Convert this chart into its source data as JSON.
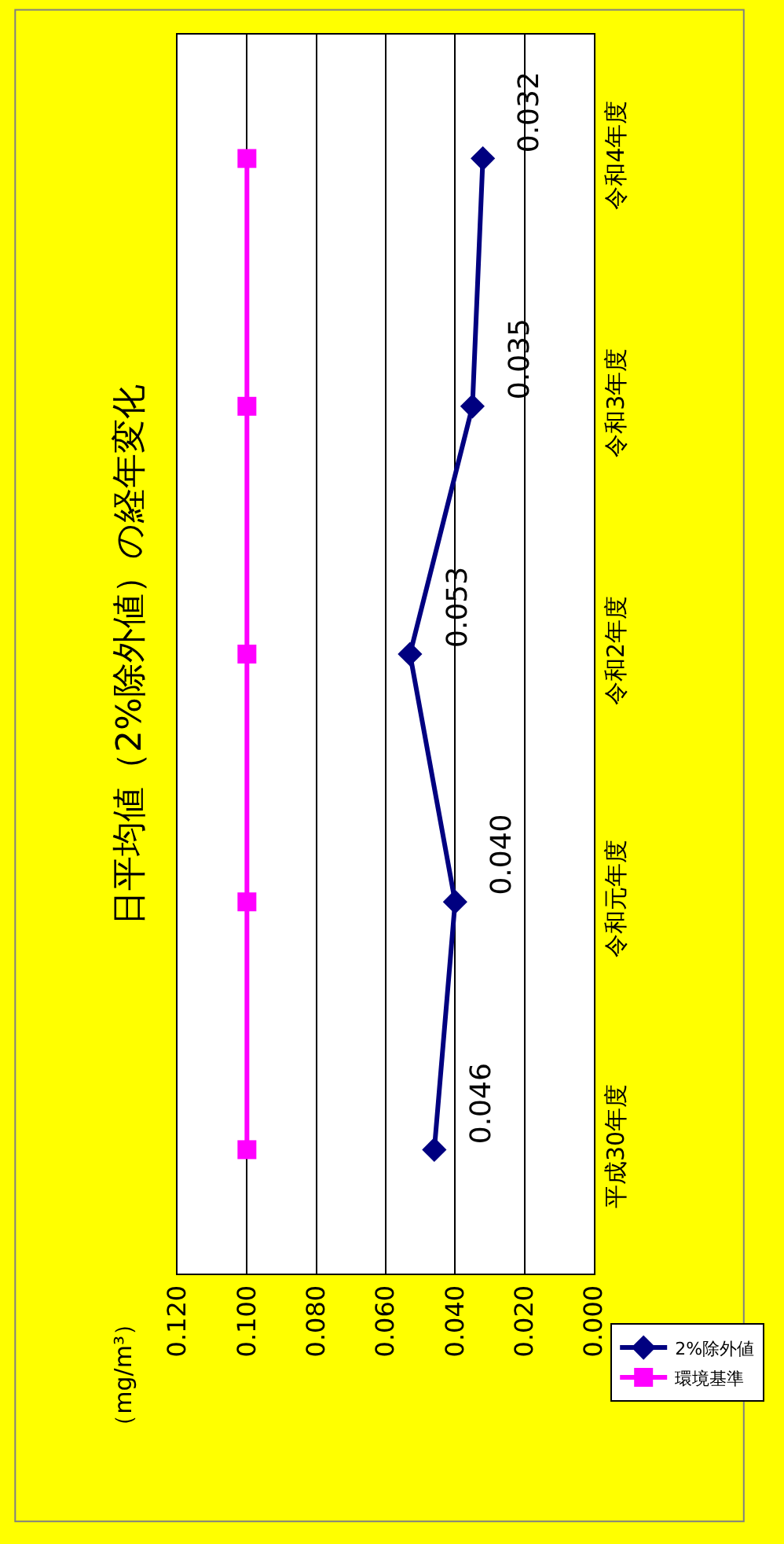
{
  "chart_data": {
    "type": "line",
    "orientation": "horizontal",
    "title": "日平均値（2%除外値）の経年変化",
    "annotations": [
      "（mg/m³）"
    ],
    "categories": [
      "令和4年度",
      "令和3年度",
      "令和2年度",
      "令和元年度",
      "平成30年度"
    ],
    "series": [
      {
        "name": "2%除外値",
        "color": "#000080",
        "marker": "diamond",
        "values": [
          0.032,
          0.035,
          0.053,
          0.04,
          0.046
        ],
        "value_labels": [
          "0.032",
          "0.035",
          "0.053",
          "0.040",
          "0.046"
        ]
      },
      {
        "name": "環境基準",
        "color": "#ff00ff",
        "marker": "square",
        "values": [
          0.1,
          0.1,
          0.1,
          0.1,
          0.1
        ]
      }
    ],
    "xlim": [
      0.12,
      0
    ],
    "xticks": [
      {
        "value": 0.12,
        "label": "0.120"
      },
      {
        "value": 0.1,
        "label": "0.100"
      },
      {
        "value": 0.08,
        "label": "0.080"
      },
      {
        "value": 0.06,
        "label": "0.060"
      },
      {
        "value": 0.04,
        "label": "0.040"
      },
      {
        "value": 0.02,
        "label": "0.020"
      },
      {
        "value": 0,
        "label": "0.000"
      }
    ],
    "grid": "x",
    "legend": "bottom",
    "line_style": "solid"
  }
}
